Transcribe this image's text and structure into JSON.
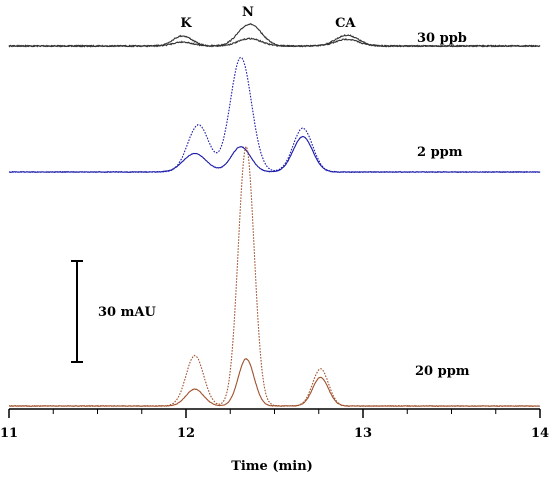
{
  "chart_data": {
    "type": "line",
    "title": "",
    "xlabel": "Time (min)",
    "ylabel": "",
    "xlim": [
      11,
      14
    ],
    "x_ticks": [
      "11",
      "12",
      "13",
      "14"
    ],
    "grid": false,
    "peaks": [
      {
        "label": "K",
        "time": 12.0
      },
      {
        "label": "N",
        "time": 12.35
      },
      {
        "label": "CA",
        "time": 12.9
      }
    ],
    "scale_bar": {
      "label": "30 mAU",
      "value": 30
    },
    "traces": [
      {
        "name": "30 ppb",
        "color": "#333333",
        "series": [
          {
            "style": "solid",
            "peaks_mAU": [
              {
                "t": 11.98,
                "h": 3.0,
                "w": 0.055
              },
              {
                "t": 12.36,
                "h": 6.5,
                "w": 0.065
              },
              {
                "t": 12.91,
                "h": 3.2,
                "w": 0.065
              }
            ]
          },
          {
            "style": "solid",
            "peaks_mAU": [
              {
                "t": 11.98,
                "h": 1.2,
                "w": 0.055
              },
              {
                "t": 12.36,
                "h": 2.2,
                "w": 0.065
              },
              {
                "t": 12.91,
                "h": 2.0,
                "w": 0.065
              }
            ]
          }
        ]
      },
      {
        "name": "2 ppm",
        "color": "#1a1aaa",
        "series": [
          {
            "style": "dotted",
            "peaks_mAU": [
              {
                "t": 12.07,
                "h": 14.0,
                "w": 0.06
              },
              {
                "t": 12.31,
                "h": 34.0,
                "w": 0.06
              },
              {
                "t": 12.66,
                "h": 13.0,
                "w": 0.055
              }
            ]
          },
          {
            "style": "solid",
            "peaks_mAU": [
              {
                "t": 12.05,
                "h": 5.5,
                "w": 0.065
              },
              {
                "t": 12.31,
                "h": 7.5,
                "w": 0.055
              },
              {
                "t": 12.66,
                "h": 10.5,
                "w": 0.055
              }
            ]
          }
        ]
      },
      {
        "name": "20 ppm",
        "color": "#a0522d",
        "series": [
          {
            "style": "dotted",
            "peaks_mAU": [
              {
                "t": 12.05,
                "h": 15.0,
                "w": 0.05
              },
              {
                "t": 12.34,
                "h": 77.0,
                "w": 0.045
              },
              {
                "t": 12.76,
                "h": 11.0,
                "w": 0.045
              }
            ]
          },
          {
            "style": "solid",
            "peaks_mAU": [
              {
                "t": 12.05,
                "h": 5.0,
                "w": 0.05
              },
              {
                "t": 12.34,
                "h": 14.0,
                "w": 0.045
              },
              {
                "t": 12.76,
                "h": 8.5,
                "w": 0.045
              }
            ]
          }
        ]
      }
    ]
  }
}
